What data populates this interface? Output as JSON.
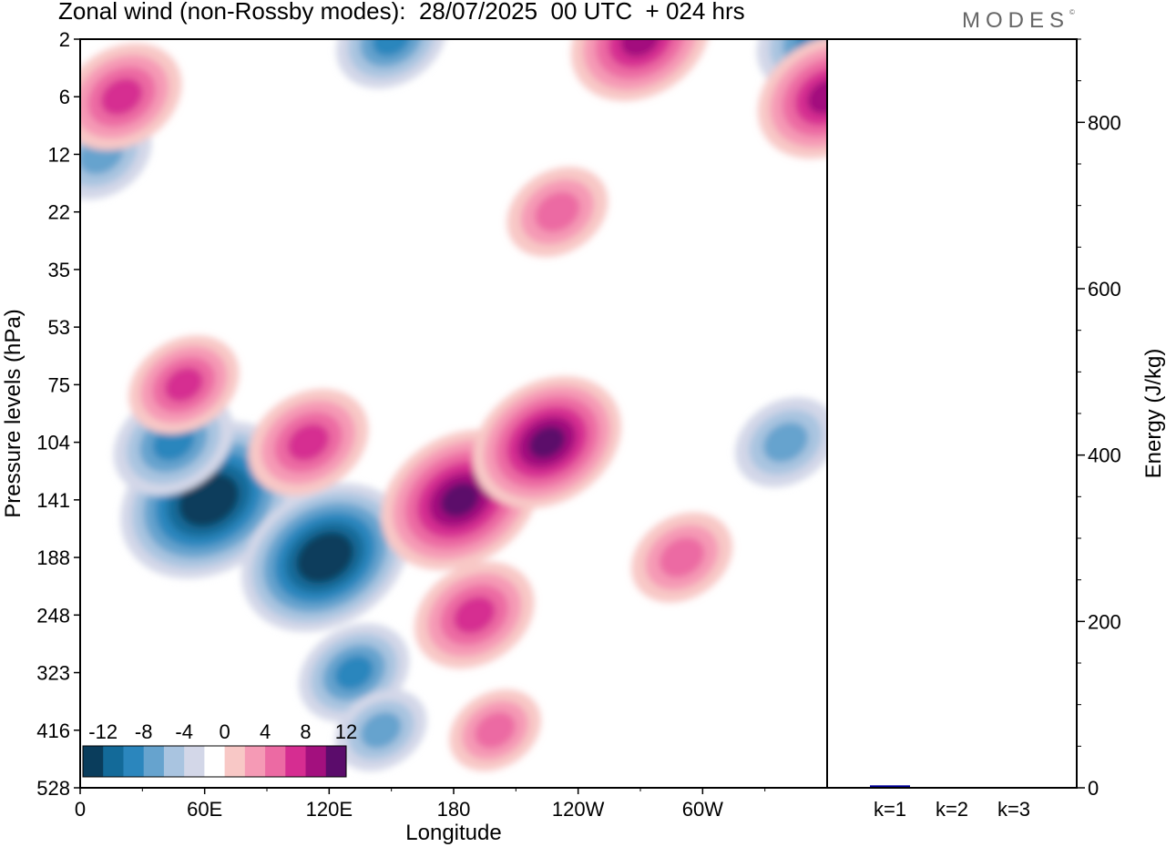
{
  "header": {
    "title": "Zonal wind (non-Rossby modes):  28/07/2025  00 UTC  + 024 hrs",
    "brand": "MODES",
    "brand_mark": "©"
  },
  "chart_data": [
    {
      "type": "heatmap",
      "title": "Zonal wind (non-Rossby modes):  28/07/2025  00 UTC  + 024 hrs",
      "xlabel": "Longitude",
      "ylabel": "Pressure levels (hPa)",
      "x_ticks": [
        "0",
        "60E",
        "120E",
        "180",
        "120W",
        "60W"
      ],
      "y_ticks": [
        "2",
        "6",
        "12",
        "22",
        "35",
        "53",
        "75",
        "104",
        "141",
        "188",
        "248",
        "323",
        "416",
        "528"
      ],
      "colorbar": {
        "labels": [
          "-12",
          "-8",
          "-4",
          "0",
          "4",
          "8",
          "12"
        ],
        "levels": [
          -14,
          -12,
          -10,
          -8,
          -6,
          -4,
          -2,
          2,
          4,
          6,
          8,
          10,
          12,
          14
        ],
        "colors": [
          "#0a3d5c",
          "#136a99",
          "#2b86bd",
          "#66a3ce",
          "#a9c4e0",
          "#d3d7e8",
          "#ffffff",
          "#f8c8c6",
          "#f59ab5",
          "#ec6aa3",
          "#d62d91",
          "#a3107e",
          "#5b0c6b"
        ]
      },
      "features": [
        {
          "lon": 62,
          "level": 141,
          "value": -14
        },
        {
          "lon": 45,
          "level": 104,
          "value": -8
        },
        {
          "lon": 118,
          "level": 188,
          "value": -13
        },
        {
          "lon": 132,
          "level": 323,
          "value": -7
        },
        {
          "lon": 145,
          "level": 416,
          "value": -5
        },
        {
          "lon": 10,
          "level": 12,
          "value": -6
        },
        {
          "lon": 150,
          "level": 2,
          "value": -7
        },
        {
          "lon": 340,
          "level": 104,
          "value": -6
        },
        {
          "lon": 355,
          "level": 2,
          "value": -8
        },
        {
          "lon": 20,
          "level": 6,
          "value": 8
        },
        {
          "lon": 50,
          "level": 75,
          "value": 7
        },
        {
          "lon": 110,
          "level": 104,
          "value": 8
        },
        {
          "lon": 183,
          "level": 141,
          "value": 12
        },
        {
          "lon": 225,
          "level": 104,
          "value": 11
        },
        {
          "lon": 190,
          "level": 248,
          "value": 8
        },
        {
          "lon": 270,
          "level": 2,
          "value": 10
        },
        {
          "lon": 360,
          "level": 6,
          "value": 10
        },
        {
          "lon": 290,
          "level": 188,
          "value": 6
        },
        {
          "lon": 230,
          "level": 22,
          "value": 6
        },
        {
          "lon": 200,
          "level": 416,
          "value": 5
        }
      ]
    },
    {
      "type": "bar",
      "title": "",
      "xlabel": "",
      "ylabel": "Energy (J/kg)",
      "categories": [
        "k=1",
        "k=2",
        "k=3"
      ],
      "values": [
        3,
        1,
        1
      ],
      "ylim": [
        0,
        900
      ],
      "y_ticks": [
        "0",
        "200",
        "400",
        "600",
        "800"
      ],
      "bar_color": "#000099"
    }
  ]
}
